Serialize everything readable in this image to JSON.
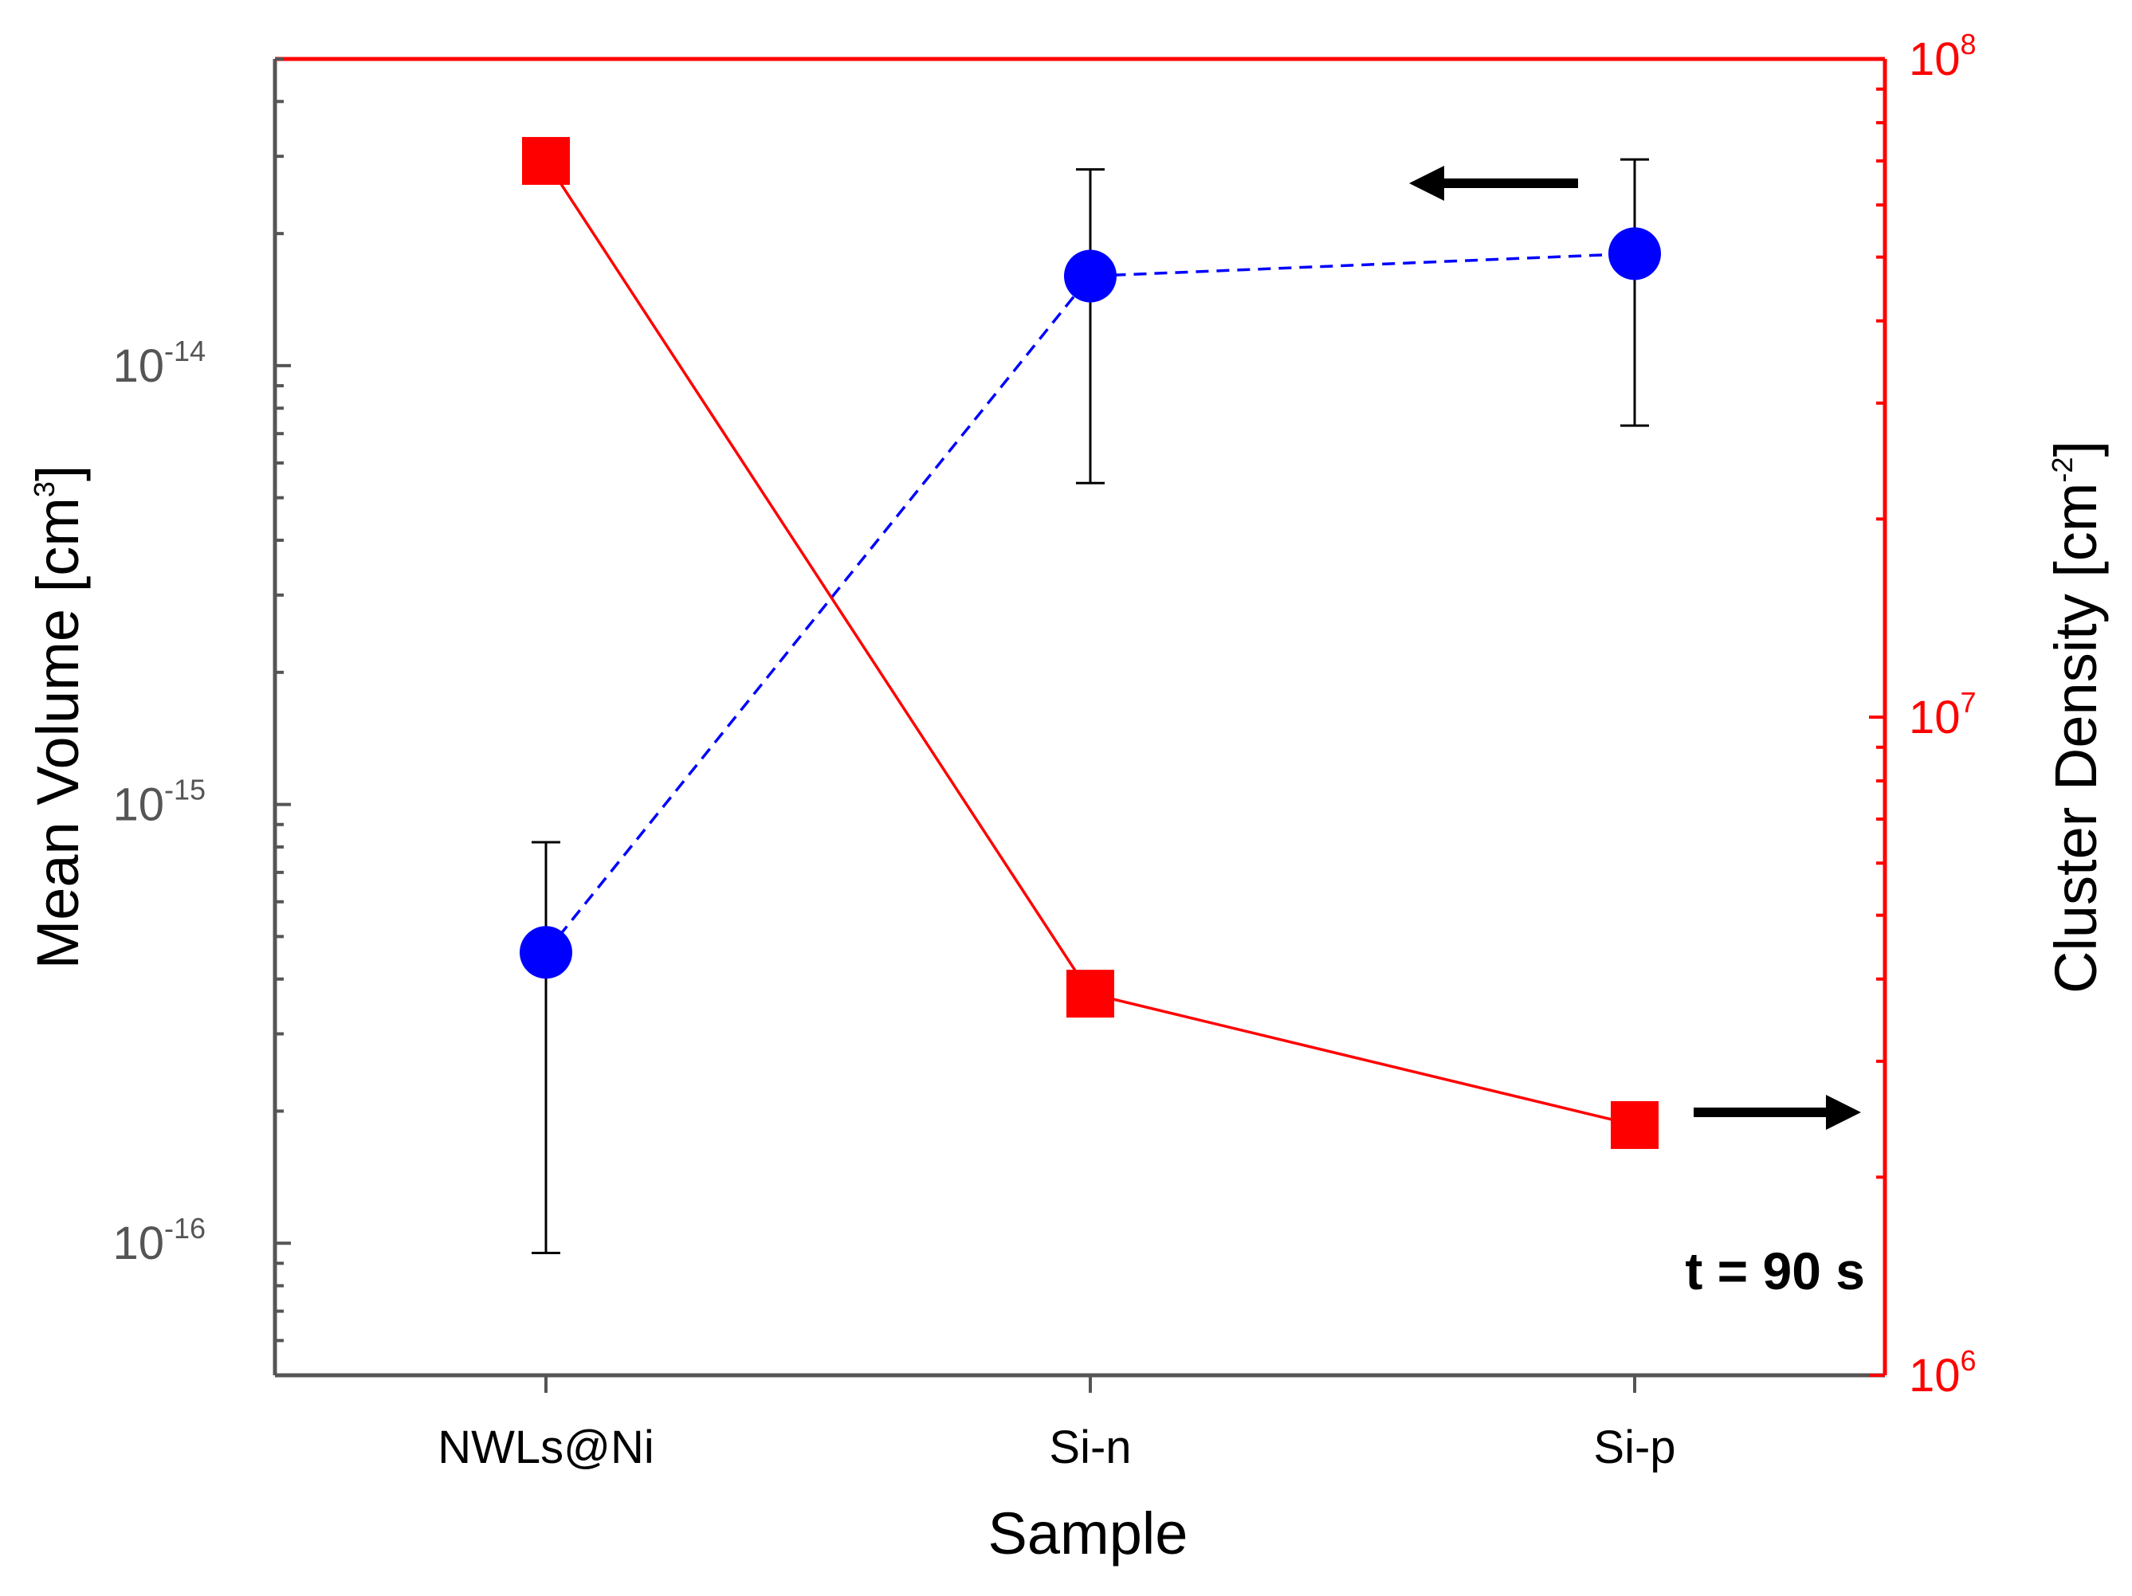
{
  "chart_data": {
    "type": "scatter",
    "xlabel": "Sample",
    "categories": [
      "NWLs@Ni",
      "Si-n",
      "Si-p"
    ],
    "left_axis": {
      "label": "Mean Volume [cm",
      "label_sup": "3",
      "label_end": "]",
      "scale": "log",
      "ylim": [
        5e-17,
        5e-14
      ],
      "ticks": [
        {
          "value": 1e-14,
          "base": "10",
          "exp": "-14"
        },
        {
          "value": 1e-15,
          "base": "10",
          "exp": "-15"
        },
        {
          "value": 1e-16,
          "base": "10",
          "exp": "-16"
        }
      ],
      "color": "#555555"
    },
    "right_axis": {
      "label": "Cluster Density [cm",
      "label_sup": "-2",
      "label_end": "]",
      "scale": "log",
      "ylim": [
        1000000.0,
        100000000.0
      ],
      "ticks": [
        {
          "value": 100000000.0,
          "base": "10",
          "exp": "8"
        },
        {
          "value": 10000000.0,
          "base": "10",
          "exp": "7"
        },
        {
          "value": 1000000.0,
          "base": "10",
          "exp": "6"
        }
      ],
      "color": "#ff0000"
    },
    "series": [
      {
        "name": "Mean Volume",
        "axis": "left",
        "marker": "circle",
        "line": "dashed",
        "color": "#0000ff",
        "values": [
          4.6e-16,
          1.6e-14,
          1.8e-14
        ],
        "err_high": [
          8.2e-16,
          2.8e-14,
          2.95e-14
        ],
        "err_low": [
          9.5e-17,
          5.4e-15,
          7.3e-15
        ]
      },
      {
        "name": "Cluster Density",
        "axis": "right",
        "marker": "square",
        "line": "solid",
        "color": "#ff0000",
        "values": [
          70000000.0,
          3800000.0,
          2400000.0
        ]
      }
    ],
    "annotations": {
      "time_label": "t = 90 s"
    }
  }
}
